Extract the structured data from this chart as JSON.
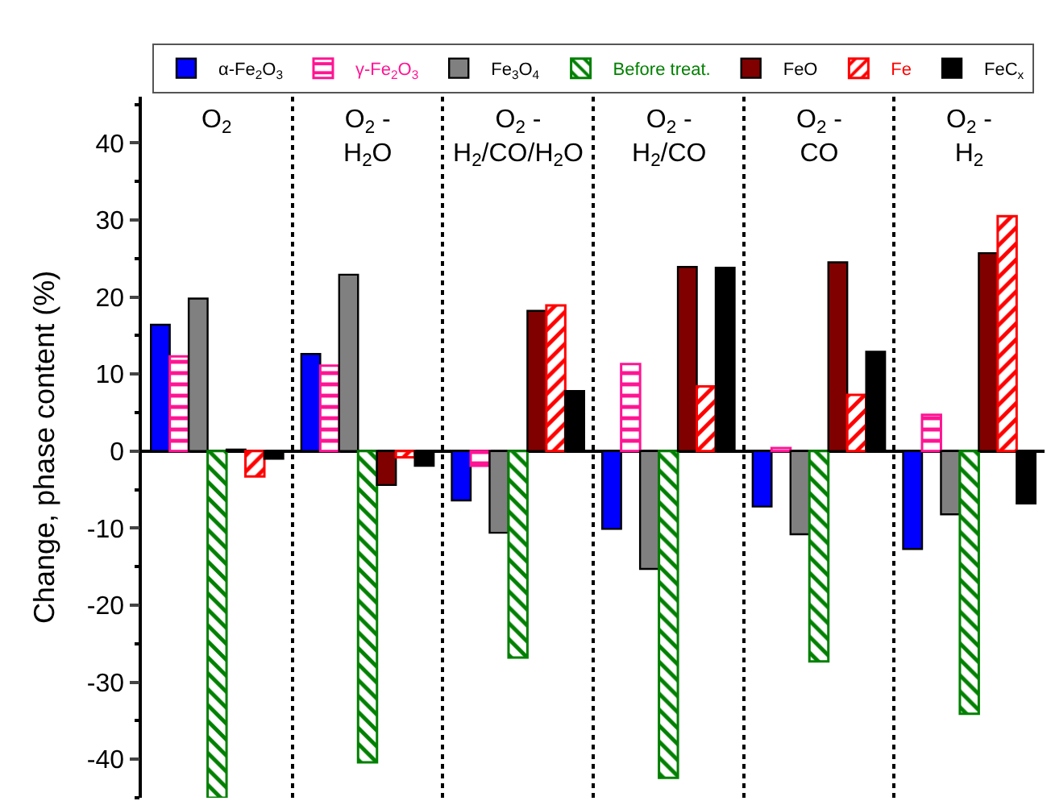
{
  "chart_data": {
    "type": "bar",
    "ylabel": "Change, phase content (%)",
    "categories": [
      "O$_{2}$",
      "O$_{2}$ -\nH$_{2}$O",
      "O$_{2}$ -\nH$_{2}$/CO/H$_{2}$O",
      "O$_{2}$ -\nH$_{2}$/CO",
      "O$_{2}$ -\nCO",
      "O$_{2}$ -\nH$_{2}$"
    ],
    "series": [
      {
        "name": "α-Fe$_{2}$O$_{3}$",
        "color": "#0000ff",
        "values": [
          16.4,
          12.6,
          -6.4,
          -10.1,
          -7.2,
          -12.7
        ]
      },
      {
        "name": "γ-Fe$_{2}$O$_{3}$",
        "color": "#ff1493",
        "values": [
          12.3,
          11.1,
          -1.9,
          11.3,
          0.4,
          4.7
        ]
      },
      {
        "name": "Fe$_{3}$O$_{4}$",
        "color": "#808080",
        "values": [
          19.8,
          22.9,
          -10.6,
          -15.3,
          -10.8,
          -8.2
        ]
      },
      {
        "name": "Before treat.",
        "color": "#008000",
        "values": [
          -45,
          -40.4,
          -26.8,
          -42.4,
          -27.3,
          -34.1
        ]
      },
      {
        "name": "FeO",
        "color": "#800000",
        "values": [
          0.2,
          -4.4,
          18.2,
          23.9,
          24.5,
          25.7
        ]
      },
      {
        "name": "Fe",
        "color": "#ff0000",
        "values": [
          -3.3,
          -0.8,
          18.9,
          8.4,
          7.3,
          30.5
        ]
      },
      {
        "name": "FeC$_{x}$",
        "color": "#000000",
        "values": [
          -1.0,
          -1.9,
          7.8,
          23.8,
          12.9,
          -6.8
        ]
      }
    ],
    "ylim": [
      -45,
      46
    ],
    "yticks": [
      -40,
      -30,
      -20,
      -10,
      0,
      10,
      20,
      30,
      40
    ],
    "grid": "x",
    "legend": "top"
  }
}
